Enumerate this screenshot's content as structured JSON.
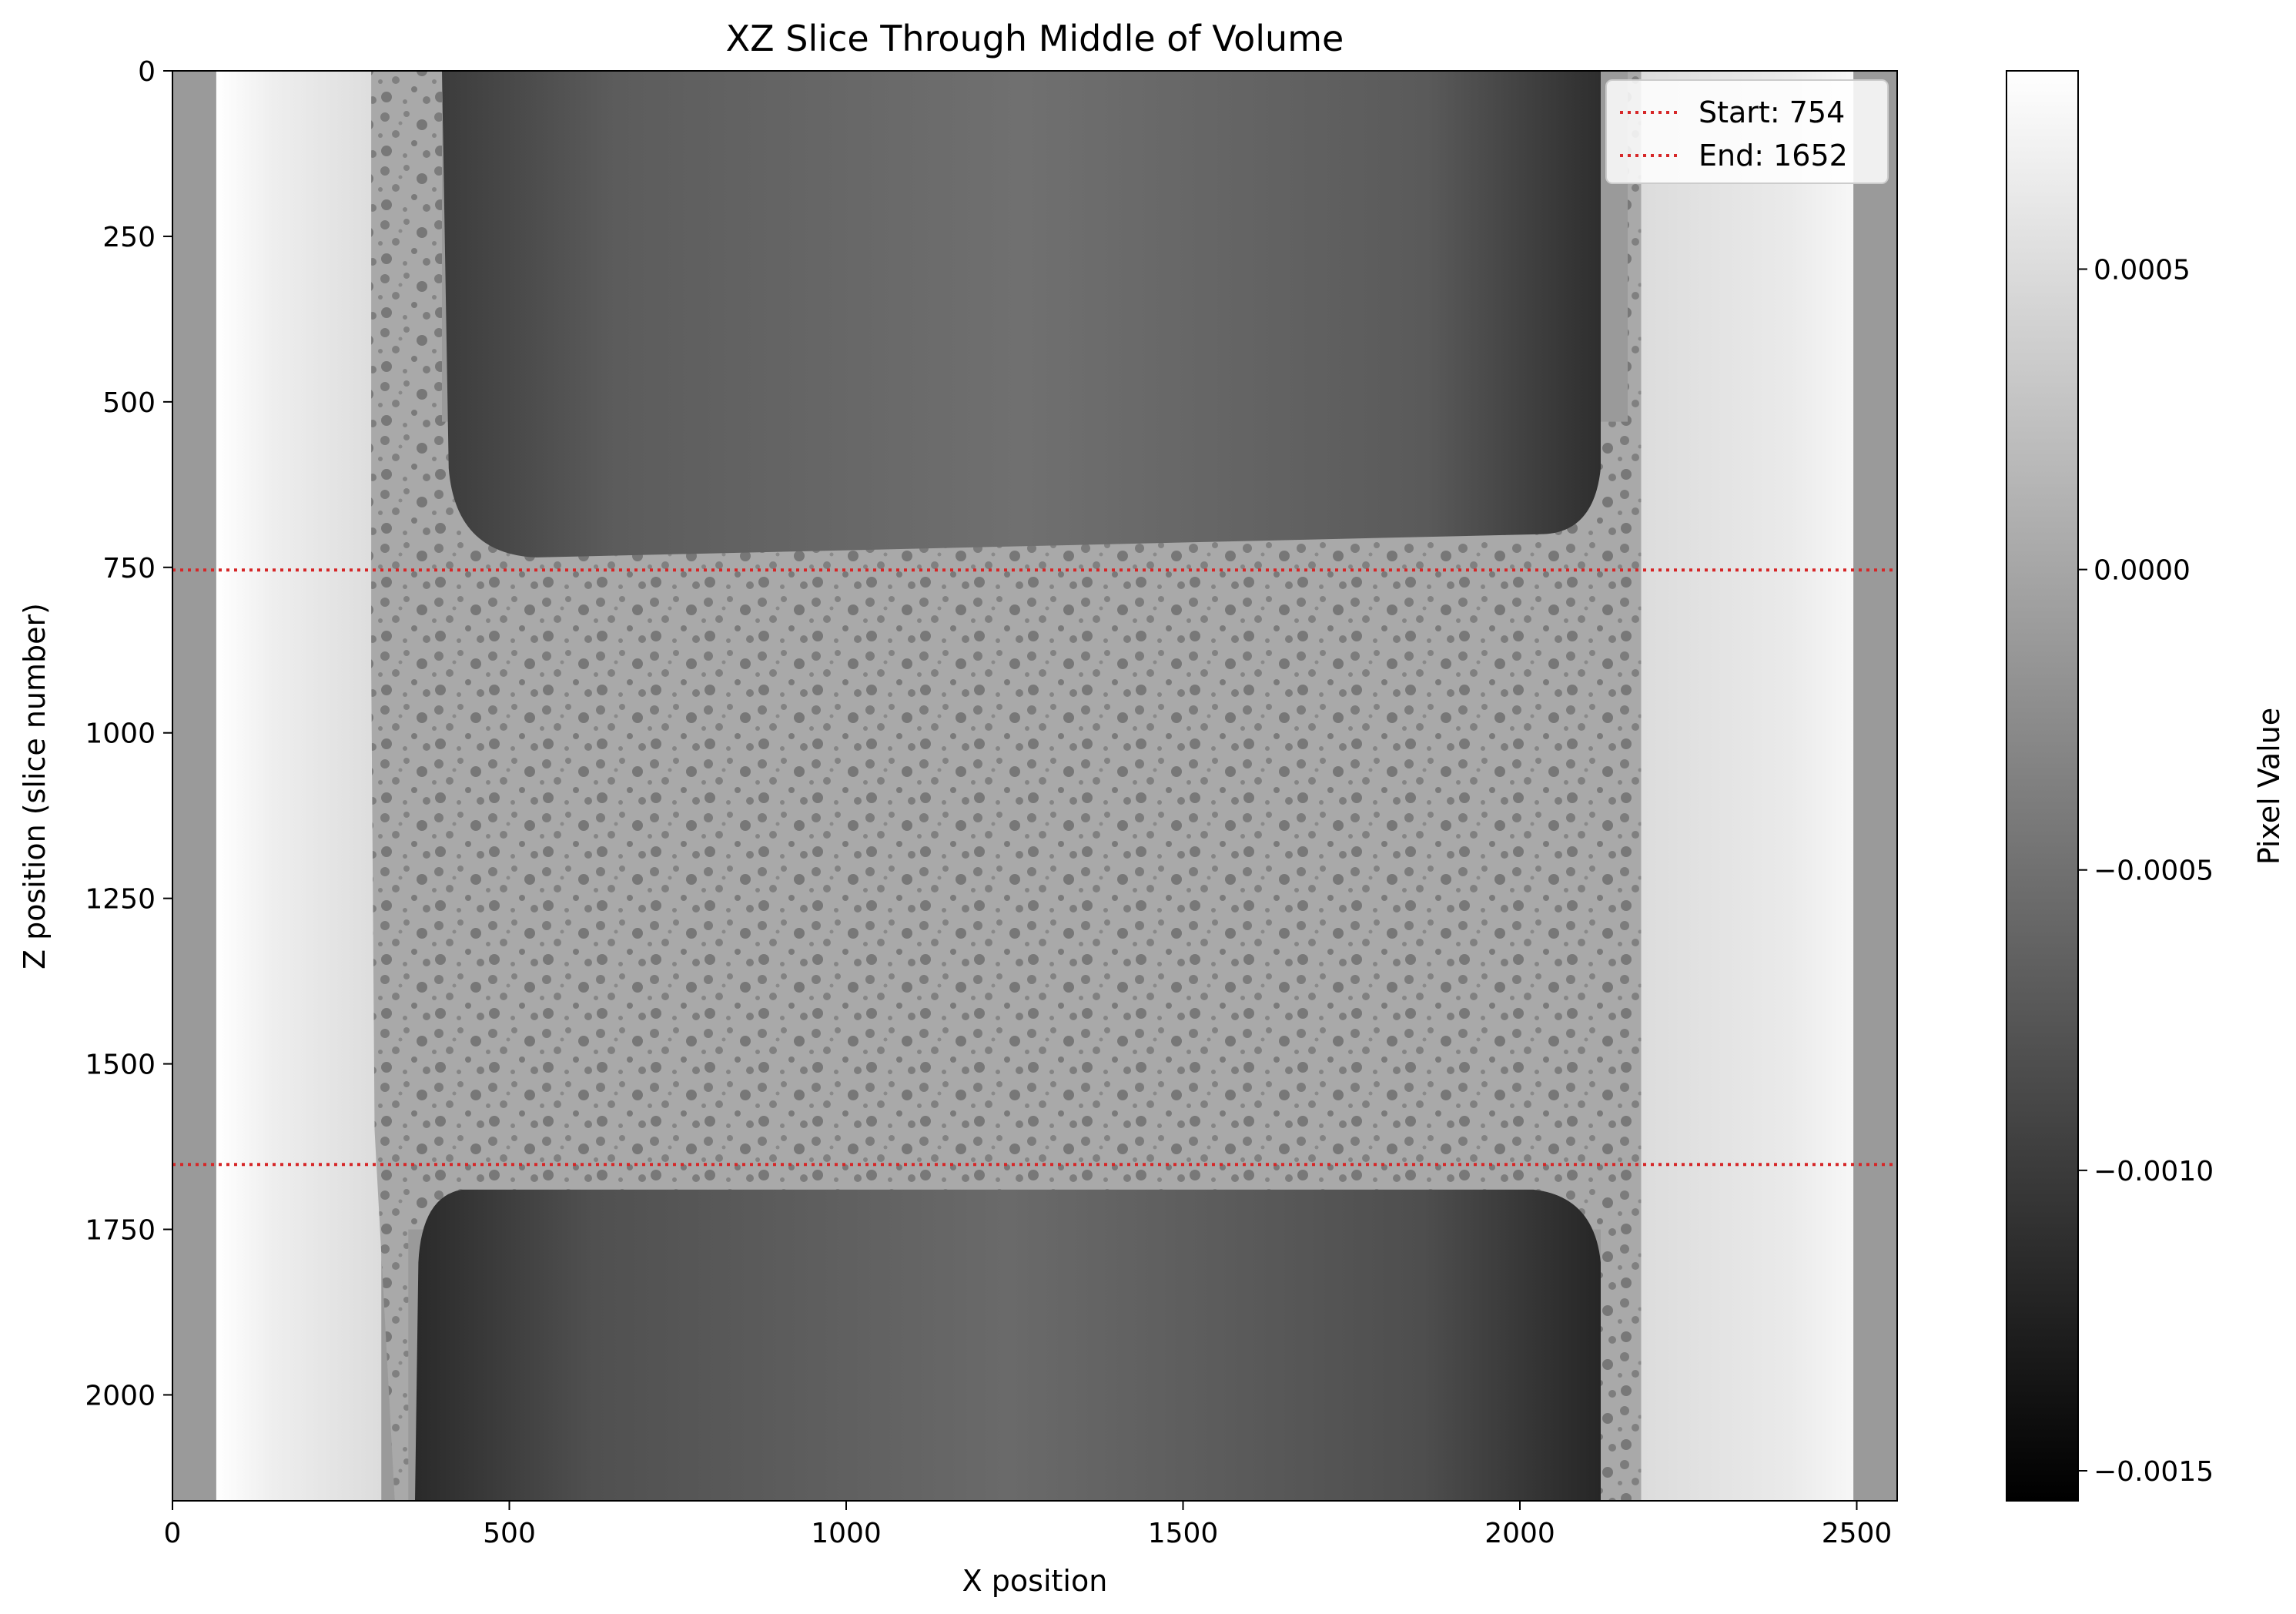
{
  "chart_data": {
    "type": "heatmap",
    "title": "XZ Slice Through Middle of Volume",
    "xlabel": "X position",
    "ylabel": "Z position (slice number)",
    "xlim": [
      0,
      2560
    ],
    "ylim": [
      2160,
      0
    ],
    "x_ticks": [
      0,
      500,
      1000,
      1500,
      2000,
      2500
    ],
    "y_ticks": [
      0,
      250,
      500,
      750,
      1000,
      1250,
      1500,
      1750,
      2000
    ],
    "colormap": "gray",
    "colorbar": {
      "label": "Pixel Value",
      "range": [
        -0.00155,
        0.00083
      ],
      "ticks": [
        0.0005,
        0.0,
        -0.0005,
        -0.001,
        -0.0015
      ],
      "tick_labels": [
        "0.0005",
        "0.0000",
        "−0.0005",
        "−0.0010",
        "−0.0015"
      ]
    },
    "hlines": [
      {
        "name": "Start: 754",
        "y": 754,
        "color": "#d62728",
        "style": "dotted"
      },
      {
        "name": "End: 1652",
        "y": 1652,
        "color": "#d62728",
        "style": "dotted"
      }
    ],
    "legend_position": "top-right",
    "grid": false
  }
}
